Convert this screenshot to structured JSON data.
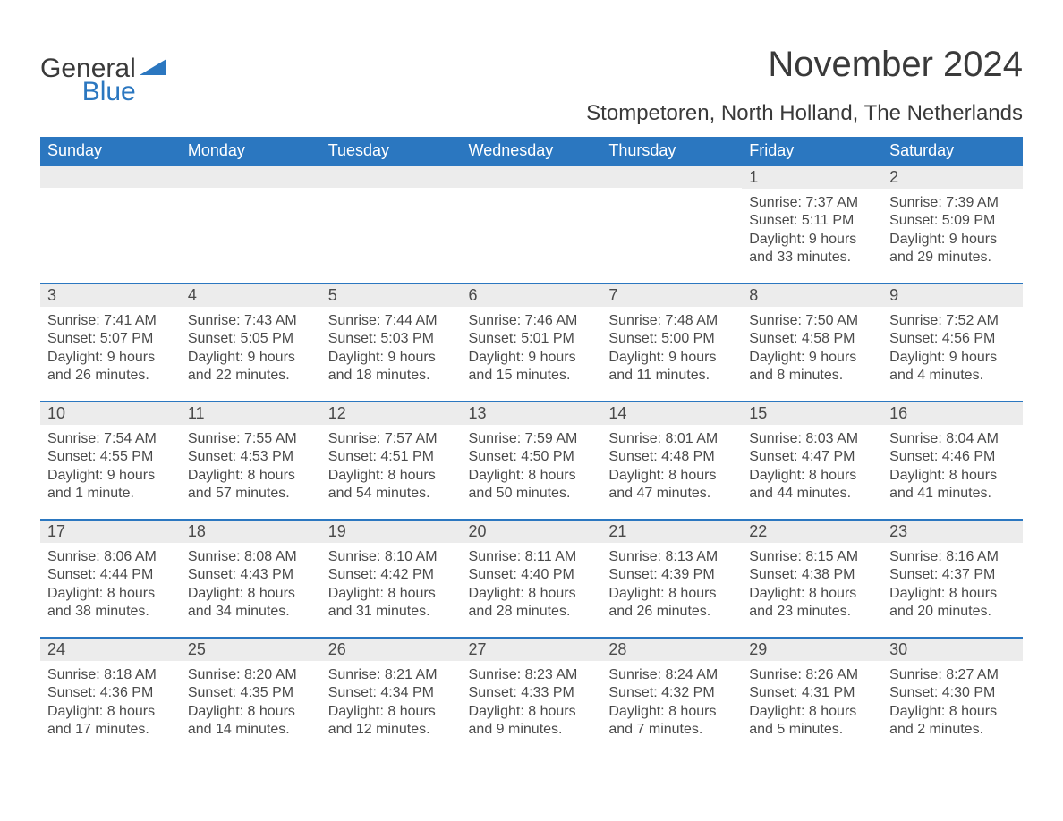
{
  "logo": {
    "word1": "General",
    "word2": "Blue",
    "accent_color": "#2b77c0"
  },
  "header": {
    "title": "November 2024",
    "location": "Stompetoren, North Holland, The Netherlands"
  },
  "calendar": {
    "type": "table",
    "columns": [
      "Sunday",
      "Monday",
      "Tuesday",
      "Wednesday",
      "Thursday",
      "Friday",
      "Saturday"
    ],
    "header_bg": "#2b77c0",
    "header_text_color": "#ffffff",
    "daynum_bg": "#ececec",
    "row_border_color": "#2b77c0",
    "body_text_color": "#4a4a4a",
    "font_size_header": 18,
    "font_size_daynum": 18,
    "font_size_body": 16,
    "leading_blanks": 5,
    "days": [
      {
        "n": "1",
        "sunrise": "7:37 AM",
        "sunset": "5:11 PM",
        "daylight": "9 hours and 33 minutes."
      },
      {
        "n": "2",
        "sunrise": "7:39 AM",
        "sunset": "5:09 PM",
        "daylight": "9 hours and 29 minutes."
      },
      {
        "n": "3",
        "sunrise": "7:41 AM",
        "sunset": "5:07 PM",
        "daylight": "9 hours and 26 minutes."
      },
      {
        "n": "4",
        "sunrise": "7:43 AM",
        "sunset": "5:05 PM",
        "daylight": "9 hours and 22 minutes."
      },
      {
        "n": "5",
        "sunrise": "7:44 AM",
        "sunset": "5:03 PM",
        "daylight": "9 hours and 18 minutes."
      },
      {
        "n": "6",
        "sunrise": "7:46 AM",
        "sunset": "5:01 PM",
        "daylight": "9 hours and 15 minutes."
      },
      {
        "n": "7",
        "sunrise": "7:48 AM",
        "sunset": "5:00 PM",
        "daylight": "9 hours and 11 minutes."
      },
      {
        "n": "8",
        "sunrise": "7:50 AM",
        "sunset": "4:58 PM",
        "daylight": "9 hours and 8 minutes."
      },
      {
        "n": "9",
        "sunrise": "7:52 AM",
        "sunset": "4:56 PM",
        "daylight": "9 hours and 4 minutes."
      },
      {
        "n": "10",
        "sunrise": "7:54 AM",
        "sunset": "4:55 PM",
        "daylight": "9 hours and 1 minute."
      },
      {
        "n": "11",
        "sunrise": "7:55 AM",
        "sunset": "4:53 PM",
        "daylight": "8 hours and 57 minutes."
      },
      {
        "n": "12",
        "sunrise": "7:57 AM",
        "sunset": "4:51 PM",
        "daylight": "8 hours and 54 minutes."
      },
      {
        "n": "13",
        "sunrise": "7:59 AM",
        "sunset": "4:50 PM",
        "daylight": "8 hours and 50 minutes."
      },
      {
        "n": "14",
        "sunrise": "8:01 AM",
        "sunset": "4:48 PM",
        "daylight": "8 hours and 47 minutes."
      },
      {
        "n": "15",
        "sunrise": "8:03 AM",
        "sunset": "4:47 PM",
        "daylight": "8 hours and 44 minutes."
      },
      {
        "n": "16",
        "sunrise": "8:04 AM",
        "sunset": "4:46 PM",
        "daylight": "8 hours and 41 minutes."
      },
      {
        "n": "17",
        "sunrise": "8:06 AM",
        "sunset": "4:44 PM",
        "daylight": "8 hours and 38 minutes."
      },
      {
        "n": "18",
        "sunrise": "8:08 AM",
        "sunset": "4:43 PM",
        "daylight": "8 hours and 34 minutes."
      },
      {
        "n": "19",
        "sunrise": "8:10 AM",
        "sunset": "4:42 PM",
        "daylight": "8 hours and 31 minutes."
      },
      {
        "n": "20",
        "sunrise": "8:11 AM",
        "sunset": "4:40 PM",
        "daylight": "8 hours and 28 minutes."
      },
      {
        "n": "21",
        "sunrise": "8:13 AM",
        "sunset": "4:39 PM",
        "daylight": "8 hours and 26 minutes."
      },
      {
        "n": "22",
        "sunrise": "8:15 AM",
        "sunset": "4:38 PM",
        "daylight": "8 hours and 23 minutes."
      },
      {
        "n": "23",
        "sunrise": "8:16 AM",
        "sunset": "4:37 PM",
        "daylight": "8 hours and 20 minutes."
      },
      {
        "n": "24",
        "sunrise": "8:18 AM",
        "sunset": "4:36 PM",
        "daylight": "8 hours and 17 minutes."
      },
      {
        "n": "25",
        "sunrise": "8:20 AM",
        "sunset": "4:35 PM",
        "daylight": "8 hours and 14 minutes."
      },
      {
        "n": "26",
        "sunrise": "8:21 AM",
        "sunset": "4:34 PM",
        "daylight": "8 hours and 12 minutes."
      },
      {
        "n": "27",
        "sunrise": "8:23 AM",
        "sunset": "4:33 PM",
        "daylight": "8 hours and 9 minutes."
      },
      {
        "n": "28",
        "sunrise": "8:24 AM",
        "sunset": "4:32 PM",
        "daylight": "8 hours and 7 minutes."
      },
      {
        "n": "29",
        "sunrise": "8:26 AM",
        "sunset": "4:31 PM",
        "daylight": "8 hours and 5 minutes."
      },
      {
        "n": "30",
        "sunrise": "8:27 AM",
        "sunset": "4:30 PM",
        "daylight": "8 hours and 2 minutes."
      }
    ],
    "labels": {
      "sunrise": "Sunrise:",
      "sunset": "Sunset:",
      "daylight": "Daylight:"
    }
  }
}
